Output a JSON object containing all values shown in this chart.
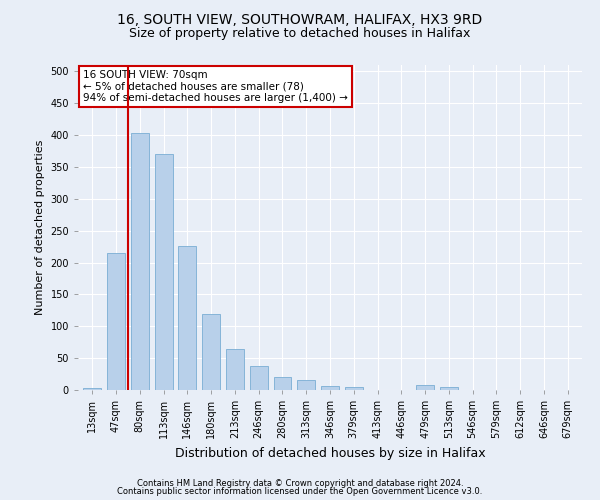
{
  "title1": "16, SOUTH VIEW, SOUTHOWRAM, HALIFAX, HX3 9RD",
  "title2": "Size of property relative to detached houses in Halifax",
  "xlabel": "Distribution of detached houses by size in Halifax",
  "ylabel": "Number of detached properties",
  "categories": [
    "13sqm",
    "47sqm",
    "80sqm",
    "113sqm",
    "146sqm",
    "180sqm",
    "213sqm",
    "246sqm",
    "280sqm",
    "313sqm",
    "346sqm",
    "379sqm",
    "413sqm",
    "446sqm",
    "479sqm",
    "513sqm",
    "546sqm",
    "579sqm",
    "612sqm",
    "646sqm",
    "679sqm"
  ],
  "values": [
    3,
    215,
    403,
    370,
    226,
    120,
    65,
    38,
    20,
    15,
    6,
    5,
    0,
    0,
    8,
    5,
    0,
    0,
    0,
    0,
    0
  ],
  "bar_color": "#b8d0ea",
  "bar_edge_color": "#7aadd4",
  "vline_color": "#cc0000",
  "annotation_text": "16 SOUTH VIEW: 70sqm\n← 5% of detached houses are smaller (78)\n94% of semi-detached houses are larger (1,400) →",
  "annotation_box_color": "#ffffff",
  "annotation_box_edge": "#cc0000",
  "ylim": [
    0,
    510
  ],
  "yticks": [
    0,
    50,
    100,
    150,
    200,
    250,
    300,
    350,
    400,
    450,
    500
  ],
  "footer1": "Contains HM Land Registry data © Crown copyright and database right 2024.",
  "footer2": "Contains public sector information licensed under the Open Government Licence v3.0.",
  "background_color": "#e8eef7",
  "plot_background": "#e8eef7",
  "title_fontsize": 10,
  "subtitle_fontsize": 9,
  "tick_fontsize": 7,
  "ylabel_fontsize": 8,
  "xlabel_fontsize": 9,
  "footer_fontsize": 6,
  "annot_fontsize": 7.5
}
